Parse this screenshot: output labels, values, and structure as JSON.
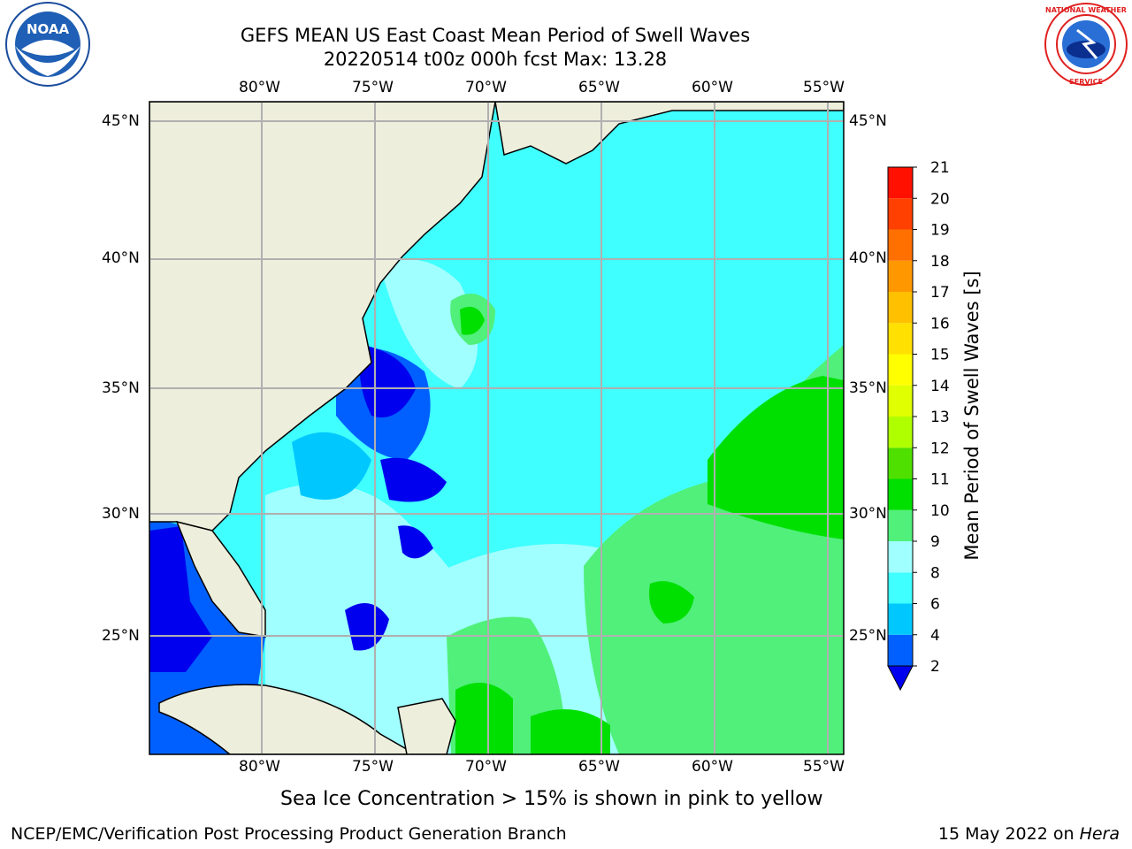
{
  "header": {
    "title_line1": "GEFS MEAN US East Coast Mean Period of Swell Waves",
    "title_line2": "20220514 t00z 000h fcst   Max: 13.28"
  },
  "logos": {
    "left": {
      "name": "noaa-logo",
      "text": "NOAA"
    },
    "right": {
      "name": "nws-logo",
      "text": "NATIONAL WEATHER SERVICE"
    }
  },
  "map": {
    "lon_ticks_top": [
      "80°W",
      "75°W",
      "70°W",
      "65°W",
      "60°W",
      "55°W"
    ],
    "lon_ticks_bottom": [
      "80°W",
      "75°W",
      "70°W",
      "65°W",
      "60°W",
      "55°W"
    ],
    "lat_ticks_left": [
      "45°N",
      "40°N",
      "35°N",
      "30°N",
      "25°N"
    ],
    "lat_ticks_right": [
      "45°N",
      "40°N",
      "35°N",
      "30°N",
      "25°N"
    ],
    "extent": {
      "lon_min": -85,
      "lon_max": -54.3,
      "lat_min": 20.5,
      "lat_max": 46
    },
    "land_color": "#eeeedd",
    "grid_color": "#b0b0b0"
  },
  "colorbar": {
    "label": "Mean Period of Swell Waves [s]",
    "ticks": [
      "2",
      "4",
      "6",
      "8",
      "9",
      "10",
      "11",
      "12",
      "13",
      "14",
      "15",
      "16",
      "17",
      "18",
      "19",
      "20",
      "21"
    ],
    "colors": [
      "#0060ff",
      "#00c8ff",
      "#40ffff",
      "#a0ffff",
      "#50f07a",
      "#00e000",
      "#50e000",
      "#b0ff00",
      "#e0ff00",
      "#ffff00",
      "#ffe000",
      "#ffc000",
      "#ff9800",
      "#ff7000",
      "#ff4000",
      "#ff1000"
    ],
    "under_color": "#0000ee",
    "extend": "min"
  },
  "footer": {
    "note": "Sea Ice Concentration > 15% is shown in pink to yellow",
    "credit": "NCEP/EMC/Verification Post Processing Product Generation Branch",
    "date": "15 May 2022 on",
    "machine": "Hera"
  }
}
